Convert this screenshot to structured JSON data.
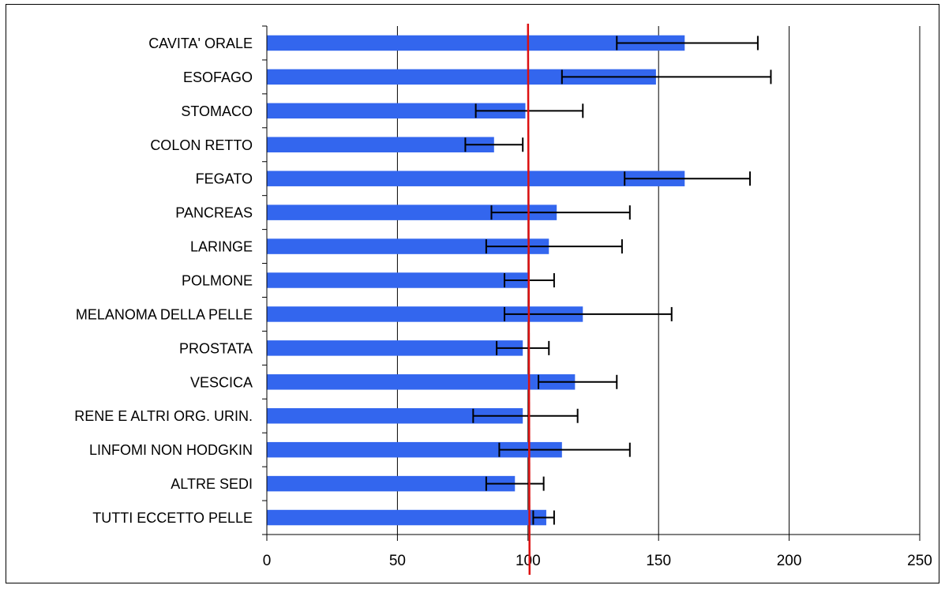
{
  "chart_data": {
    "type": "bar",
    "orientation": "horizontal",
    "title": "",
    "xlabel": "",
    "ylabel": "",
    "xlim": [
      0,
      250
    ],
    "xticks": [
      0,
      50,
      100,
      150,
      200,
      250
    ],
    "grid": "vertical",
    "legend": "none",
    "categories": [
      "CAVITA' ORALE",
      "ESOFAGO",
      "STOMACO",
      "COLON RETTO",
      "FEGATO",
      "PANCREAS",
      "LARINGE",
      "POLMONE",
      "MELANOMA DELLA PELLE",
      "PROSTATA",
      "VESCICA",
      "RENE E ALTRI ORG. URIN.",
      "LINFOMI NON HODGKIN",
      "ALTRE SEDI",
      "TUTTI ECCETTO PELLE"
    ],
    "values": [
      160,
      149,
      99,
      87,
      160,
      111,
      108,
      100,
      121,
      98,
      118,
      98,
      113,
      95,
      107
    ],
    "error_low": [
      134,
      113,
      80,
      76,
      137,
      86,
      84,
      91,
      91,
      88,
      104,
      79,
      89,
      84,
      102
    ],
    "error_high": [
      188,
      193,
      121,
      98,
      185,
      139,
      136,
      110,
      155,
      108,
      134,
      119,
      139,
      106,
      110
    ],
    "reference_line": 100,
    "colors": {
      "bar": "#3366ee",
      "reference": "#dd1111",
      "error": "#000000",
      "grid": "#000000"
    }
  }
}
